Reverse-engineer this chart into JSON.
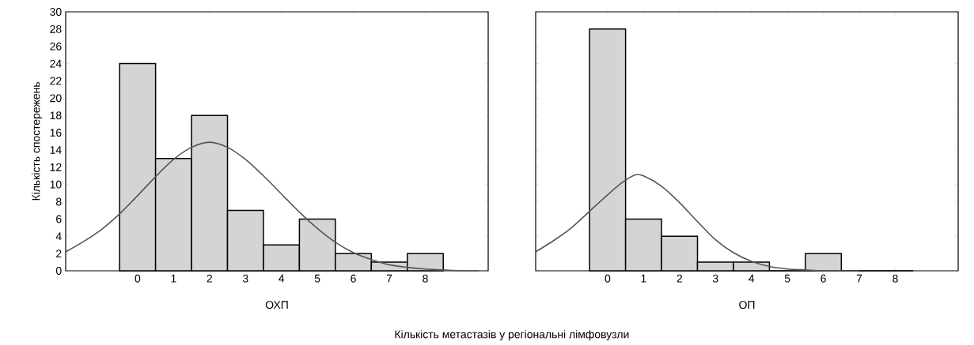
{
  "chart_data": [
    {
      "type": "histogram",
      "xlabel": "ОХП",
      "ylabel": "Кількість спостережень",
      "annotations": [
        "Кількість метастазів у регіональні лімфовузли"
      ],
      "bins": [
        -0.5,
        0.5,
        1.5,
        2.5,
        3.5,
        4.5,
        5.5,
        6.5,
        7.5,
        8.5
      ],
      "values": [
        24,
        13,
        18,
        7,
        3,
        6,
        2,
        1,
        2
      ],
      "color": "#d4d4d4",
      "series": [
        {
          "type": "line",
          "color": "#555555",
          "x": [
            -2,
            -1.5,
            -1,
            -0.5,
            0,
            0.5,
            1,
            1.5,
            2,
            2.5,
            3,
            3.5,
            4,
            4.5,
            5,
            5.5,
            6,
            6.5,
            7,
            7.5,
            8,
            8.5,
            9,
            9.5
          ],
          "values": [
            2.2,
            3.4,
            4.8,
            6.6,
            8.7,
            10.9,
            12.9,
            14.3,
            14.9,
            14.3,
            12.9,
            11.0,
            8.9,
            6.8,
            4.9,
            3.3,
            2.1,
            1.3,
            0.7,
            0.4,
            0.2,
            0.1,
            0,
            0
          ]
        }
      ],
      "xlim": [
        -2,
        9.75
      ],
      "ylim": [
        0,
        30
      ],
      "xticks": [
        0,
        1,
        2,
        3,
        4,
        5,
        6,
        7,
        8
      ],
      "yticks": [
        0,
        2,
        4,
        6,
        8,
        10,
        12,
        14,
        16,
        18,
        20,
        22,
        24,
        26,
        28,
        30
      ]
    },
    {
      "type": "histogram",
      "xlabel": "ОП",
      "bins": [
        -0.5,
        0.5,
        1.5,
        2.5,
        3.5,
        4.5,
        5.5,
        6.5,
        7.5,
        8.5
      ],
      "values": [
        28,
        6,
        4,
        1,
        1,
        0,
        2,
        0,
        0
      ],
      "color": "#d4d4d4",
      "series": [
        {
          "type": "line",
          "color": "#555555",
          "x": [
            -2,
            -1.5,
            -1,
            -0.5,
            0,
            0.4,
            0.75,
            1,
            1.5,
            2,
            2.5,
            3,
            3.5,
            4,
            4.5,
            5,
            5.5,
            6,
            7
          ],
          "values": [
            2.2,
            3.5,
            5.0,
            6.9,
            8.8,
            10.2,
            11.1,
            11.0,
            9.8,
            7.9,
            5.7,
            3.6,
            2.1,
            1.1,
            0.5,
            0.2,
            0.1,
            0,
            0
          ]
        }
      ],
      "xlim": [
        -2,
        9.75
      ],
      "ylim": [
        0,
        30
      ],
      "xticks": [
        0,
        1,
        2,
        3,
        4,
        5,
        6,
        7,
        8
      ],
      "yticks": [
        0,
        2,
        4,
        6,
        8,
        10,
        12,
        14,
        16,
        18,
        20,
        22,
        24,
        26,
        28,
        30
      ],
      "tick_labels": "x"
    }
  ]
}
